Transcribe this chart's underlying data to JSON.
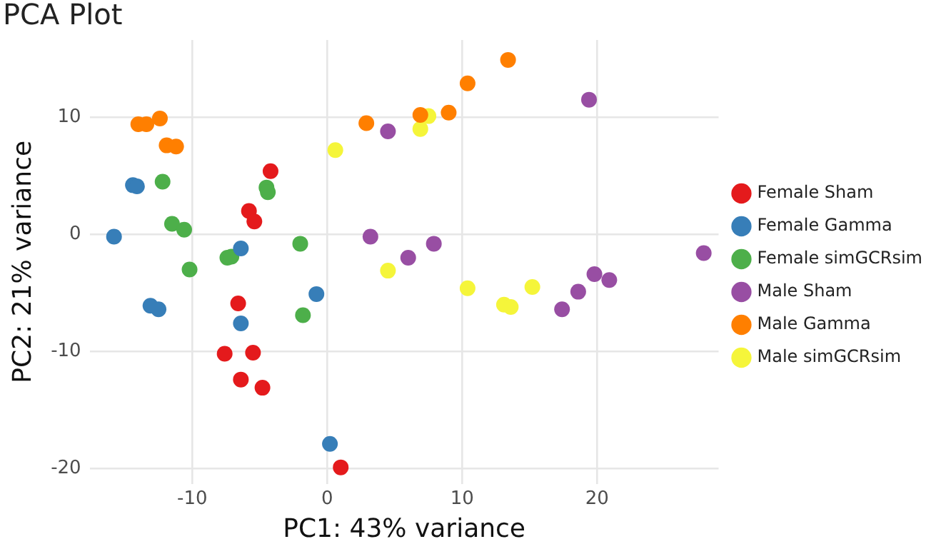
{
  "chart_data": {
    "type": "scatter",
    "title": "PCA Plot",
    "xlabel": "PC1: 43% variance",
    "ylabel": "PC2: 21% variance",
    "xlim": [
      -17.6,
      29
    ],
    "ylim": [
      -21.3,
      16.6
    ],
    "xticks": [
      -10,
      0,
      10,
      20
    ],
    "yticks": [
      -20,
      -10,
      0,
      10
    ],
    "grid": true,
    "legend": "right",
    "marker": "circle",
    "series": [
      {
        "name": "Female Sham",
        "color": "#e41a1c",
        "x": [
          -4.2,
          -5.8,
          -5.4,
          -6.6,
          -7.6,
          -5.5,
          -6.4,
          -4.8,
          1.0
        ],
        "values": [
          5.4,
          2.0,
          1.1,
          -5.9,
          -10.2,
          -10.1,
          -12.4,
          -13.1,
          -19.9
        ]
      },
      {
        "name": "Female Gamma",
        "color": "#377eb8",
        "x": [
          -14.4,
          -14.1,
          -15.8,
          -6.4,
          -13.1,
          -12.5,
          -6.4,
          -0.8,
          0.2
        ],
        "values": [
          4.2,
          4.1,
          -0.2,
          -1.2,
          -6.1,
          -6.4,
          -7.6,
          -5.1,
          -17.9
        ]
      },
      {
        "name": "Female simGCRsim",
        "color": "#4daf4a",
        "x": [
          -12.2,
          -4.5,
          -4.4,
          -11.5,
          -10.6,
          -7.4,
          -7.1,
          -2.0,
          -10.2,
          -1.8
        ],
        "values": [
          4.5,
          4.0,
          3.6,
          0.9,
          0.4,
          -2.0,
          -1.9,
          -0.8,
          -3.0,
          -6.9
        ]
      },
      {
        "name": "Male Sham",
        "color": "#984ea3",
        "x": [
          4.5,
          19.4,
          3.2,
          7.9,
          6.0,
          17.4,
          18.6,
          19.8,
          20.9,
          27.9
        ],
        "values": [
          8.8,
          11.5,
          -0.2,
          -0.8,
          -2.0,
          -6.4,
          -4.9,
          -3.4,
          -3.9,
          -1.6
        ]
      },
      {
        "name": "Male Gamma",
        "color": "#ff7f00",
        "x": [
          -14.0,
          -13.4,
          -12.4,
          -11.9,
          -11.2,
          2.9,
          6.9,
          9.0,
          10.4,
          13.4
        ],
        "values": [
          9.4,
          9.4,
          9.9,
          7.6,
          7.5,
          9.5,
          10.2,
          10.4,
          12.9,
          14.9
        ]
      },
      {
        "name": "Male simGCRsim",
        "color": "#f5f53a",
        "x": [
          0.6,
          7.5,
          6.9,
          4.5,
          10.4,
          13.1,
          13.6,
          15.2
        ],
        "values": [
          7.2,
          10.1,
          9.0,
          -3.1,
          -4.6,
          -6.0,
          -6.2,
          -4.5
        ]
      }
    ]
  }
}
